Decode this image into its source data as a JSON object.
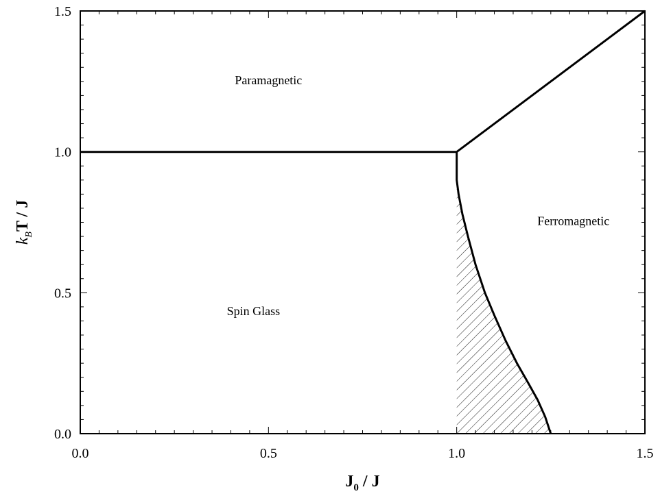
{
  "chart_data": {
    "type": "line",
    "title": "",
    "xlabel": {
      "main": "J",
      "sub": "0",
      "rest": " / J"
    },
    "ylabel": {
      "k": "k",
      "sub": "B",
      "rest": "T / J"
    },
    "xlim": [
      0.0,
      1.5
    ],
    "ylim": [
      0.0,
      1.5
    ],
    "x_major_ticks": [
      0.0,
      0.5,
      1.0,
      1.5
    ],
    "x_tick_labels": [
      "0.0",
      "0.5",
      "1.0",
      "1.5"
    ],
    "y_major_ticks": [
      0.0,
      0.5,
      1.0,
      1.5
    ],
    "y_tick_labels": [
      "0.0",
      "0.5",
      "1.0",
      "1.5"
    ],
    "x_minor_step": 0.05,
    "y_minor_step": 0.05,
    "grid": false,
    "series": [
      {
        "points": [
          [
            0.0,
            1.0
          ],
          [
            1.0,
            1.0
          ]
        ]
      },
      {
        "points": [
          [
            1.0,
            1.0
          ],
          [
            1.5,
            1.5
          ]
        ]
      },
      {
        "points": [
          [
            1.0,
            1.0
          ],
          [
            1.0,
            0.9
          ],
          [
            1.005,
            0.85
          ],
          [
            1.015,
            0.78
          ],
          [
            1.03,
            0.7
          ],
          [
            1.05,
            0.6
          ],
          [
            1.075,
            0.5
          ],
          [
            1.1,
            0.42
          ],
          [
            1.13,
            0.33
          ],
          [
            1.16,
            0.25
          ],
          [
            1.19,
            0.18
          ],
          [
            1.215,
            0.12
          ],
          [
            1.235,
            0.06
          ],
          [
            1.25,
            0.0
          ]
        ]
      }
    ],
    "hatched_region": [
      [
        1.0,
        0.88
      ],
      [
        1.005,
        0.85
      ],
      [
        1.015,
        0.78
      ],
      [
        1.03,
        0.7
      ],
      [
        1.05,
        0.6
      ],
      [
        1.075,
        0.5
      ],
      [
        1.1,
        0.42
      ],
      [
        1.13,
        0.33
      ],
      [
        1.16,
        0.25
      ],
      [
        1.19,
        0.18
      ],
      [
        1.215,
        0.12
      ],
      [
        1.235,
        0.06
      ],
      [
        1.25,
        0.0
      ],
      [
        1.0,
        0.0
      ]
    ],
    "annotations": [
      {
        "text": "Paramagnetic",
        "x": 0.5,
        "y": 1.24
      },
      {
        "text": "Ferromagnetic",
        "x": 1.31,
        "y": 0.74
      },
      {
        "text": "Spin Glass",
        "x": 0.46,
        "y": 0.42
      }
    ]
  }
}
